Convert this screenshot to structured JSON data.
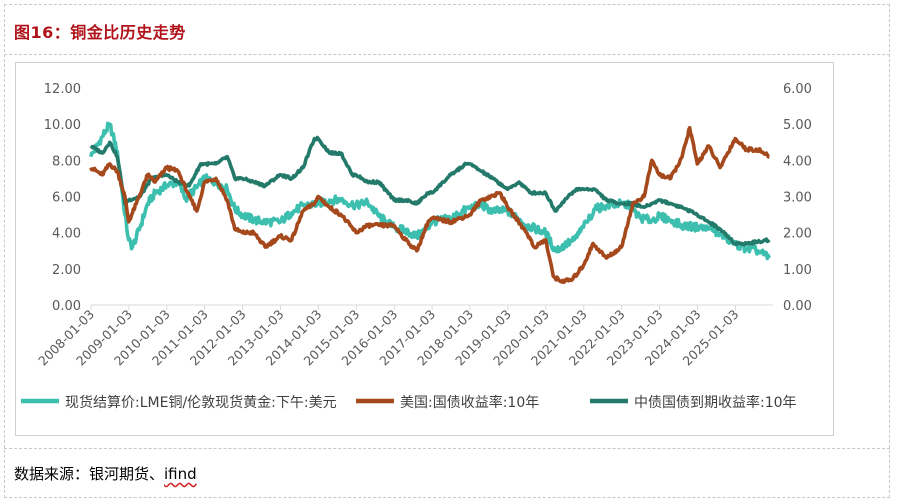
{
  "figure": {
    "title": "图16：铜金比历史走势",
    "source_prefix": "数据来源：银河期货、",
    "source_suffix": "ifind"
  },
  "chart_data": {
    "type": "line",
    "x_tick_labels": [
      "2008-01-03",
      "2009-01-03",
      "2010-01-03",
      "2011-01-03",
      "2012-01-03",
      "2013-01-03",
      "2014-01-03",
      "2015-01-03",
      "2016-01-03",
      "2017-01-03",
      "2018-01-03",
      "2019-01-03",
      "2020-01-03",
      "2021-01-03",
      "2022-01-03",
      "2023-01-03",
      "2024-01-03",
      "2025-01-03"
    ],
    "x_range": [
      "2008-01-03",
      "2025-12-31"
    ],
    "y_left": {
      "ticks": [
        "0.00",
        "2.00",
        "4.00",
        "6.00",
        "8.00",
        "10.00",
        "12.00"
      ],
      "min": 0,
      "max": 12
    },
    "y_right": {
      "ticks": [
        "0.00",
        "1.00",
        "2.00",
        "3.00",
        "4.00",
        "5.00",
        "6.00"
      ],
      "min": 0,
      "max": 6
    },
    "grid": false,
    "legend_position": "bottom",
    "series": [
      {
        "name": "现货结算价:LME铜/伦敦现货黄金:下午:美元",
        "color": "#3dbfb0",
        "axis": "left",
        "points": [
          [
            2008.0,
            8.2
          ],
          [
            2008.3,
            9.3
          ],
          [
            2008.5,
            10.0
          ],
          [
            2008.7,
            8.5
          ],
          [
            2008.9,
            5.0
          ],
          [
            2009.0,
            3.6
          ],
          [
            2009.1,
            3.2
          ],
          [
            2009.3,
            4.3
          ],
          [
            2009.5,
            5.6
          ],
          [
            2009.7,
            6.2
          ],
          [
            2010.0,
            6.6
          ],
          [
            2010.3,
            6.8
          ],
          [
            2010.5,
            5.9
          ],
          [
            2010.8,
            6.5
          ],
          [
            2011.0,
            7.0
          ],
          [
            2011.3,
            6.8
          ],
          [
            2011.6,
            6.4
          ],
          [
            2011.8,
            5.3
          ],
          [
            2012.0,
            5.0
          ],
          [
            2012.3,
            4.7
          ],
          [
            2012.6,
            4.6
          ],
          [
            2013.0,
            4.6
          ],
          [
            2013.3,
            5.1
          ],
          [
            2013.6,
            5.5
          ],
          [
            2014.0,
            5.6
          ],
          [
            2014.3,
            5.8
          ],
          [
            2014.6,
            5.8
          ],
          [
            2015.0,
            5.5
          ],
          [
            2015.3,
            5.7
          ],
          [
            2015.6,
            4.9
          ],
          [
            2016.0,
            4.3
          ],
          [
            2016.3,
            4.1
          ],
          [
            2016.6,
            3.8
          ],
          [
            2016.9,
            4.3
          ],
          [
            2017.0,
            4.6
          ],
          [
            2017.5,
            4.8
          ],
          [
            2018.0,
            5.4
          ],
          [
            2018.3,
            5.5
          ],
          [
            2018.6,
            5.2
          ],
          [
            2019.0,
            5.2
          ],
          [
            2019.5,
            4.4
          ],
          [
            2020.0,
            4.0
          ],
          [
            2020.25,
            3.0
          ],
          [
            2020.5,
            3.3
          ],
          [
            2020.75,
            3.6
          ],
          [
            2021.0,
            4.3
          ],
          [
            2021.3,
            5.3
          ],
          [
            2021.6,
            5.5
          ],
          [
            2022.0,
            5.6
          ],
          [
            2022.2,
            5.5
          ],
          [
            2022.5,
            4.8
          ],
          [
            2022.8,
            4.7
          ],
          [
            2023.0,
            4.9
          ],
          [
            2023.3,
            4.7
          ],
          [
            2023.6,
            4.4
          ],
          [
            2024.0,
            4.3
          ],
          [
            2024.3,
            4.2
          ],
          [
            2024.6,
            3.9
          ],
          [
            2025.0,
            3.4
          ],
          [
            2025.3,
            3.1
          ],
          [
            2025.6,
            3.0
          ],
          [
            2025.9,
            2.6
          ]
        ]
      },
      {
        "name": "美国:国债收益率:10年",
        "color": "#a5481b",
        "axis": "right",
        "points": [
          [
            2008.0,
            3.8
          ],
          [
            2008.3,
            3.6
          ],
          [
            2008.5,
            3.9
          ],
          [
            2008.7,
            3.7
          ],
          [
            2008.9,
            3.0
          ],
          [
            2009.0,
            2.3
          ],
          [
            2009.2,
            2.8
          ],
          [
            2009.5,
            3.6
          ],
          [
            2009.7,
            3.4
          ],
          [
            2010.0,
            3.8
          ],
          [
            2010.3,
            3.7
          ],
          [
            2010.6,
            3.0
          ],
          [
            2010.8,
            2.6
          ],
          [
            2011.0,
            3.4
          ],
          [
            2011.3,
            3.5
          ],
          [
            2011.6,
            2.9
          ],
          [
            2011.8,
            2.1
          ],
          [
            2012.0,
            2.0
          ],
          [
            2012.3,
            2.0
          ],
          [
            2012.6,
            1.6
          ],
          [
            2013.0,
            1.9
          ],
          [
            2013.3,
            1.8
          ],
          [
            2013.6,
            2.6
          ],
          [
            2013.9,
            2.8
          ],
          [
            2014.0,
            3.0
          ],
          [
            2014.3,
            2.7
          ],
          [
            2014.6,
            2.5
          ],
          [
            2015.0,
            2.0
          ],
          [
            2015.3,
            2.2
          ],
          [
            2015.6,
            2.2
          ],
          [
            2016.0,
            2.2
          ],
          [
            2016.3,
            1.8
          ],
          [
            2016.6,
            1.5
          ],
          [
            2016.9,
            2.3
          ],
          [
            2017.0,
            2.4
          ],
          [
            2017.5,
            2.3
          ],
          [
            2018.0,
            2.5
          ],
          [
            2018.3,
            2.9
          ],
          [
            2018.8,
            3.1
          ],
          [
            2019.0,
            2.7
          ],
          [
            2019.5,
            2.0
          ],
          [
            2019.7,
            1.6
          ],
          [
            2020.0,
            1.8
          ],
          [
            2020.2,
            0.8
          ],
          [
            2020.4,
            0.65
          ],
          [
            2020.7,
            0.7
          ],
          [
            2021.0,
            1.1
          ],
          [
            2021.25,
            1.7
          ],
          [
            2021.6,
            1.3
          ],
          [
            2022.0,
            1.6
          ],
          [
            2022.3,
            2.8
          ],
          [
            2022.6,
            3.0
          ],
          [
            2022.8,
            4.0
          ],
          [
            2023.0,
            3.6
          ],
          [
            2023.3,
            3.5
          ],
          [
            2023.6,
            4.1
          ],
          [
            2023.8,
            4.9
          ],
          [
            2024.0,
            3.9
          ],
          [
            2024.3,
            4.4
          ],
          [
            2024.6,
            3.8
          ],
          [
            2025.0,
            4.6
          ],
          [
            2025.3,
            4.3
          ],
          [
            2025.6,
            4.3
          ],
          [
            2025.9,
            4.1
          ]
        ]
      },
      {
        "name": "中债国债到期收益率:10年",
        "color": "#247a6a",
        "axis": "right",
        "points": [
          [
            2008.0,
            4.4
          ],
          [
            2008.3,
            4.2
          ],
          [
            2008.5,
            4.5
          ],
          [
            2008.7,
            4.1
          ],
          [
            2008.9,
            2.8
          ],
          [
            2009.0,
            2.9
          ],
          [
            2009.3,
            3.0
          ],
          [
            2009.6,
            3.5
          ],
          [
            2010.0,
            3.6
          ],
          [
            2010.3,
            3.4
          ],
          [
            2010.6,
            3.3
          ],
          [
            2010.9,
            3.9
          ],
          [
            2011.0,
            3.9
          ],
          [
            2011.3,
            3.9
          ],
          [
            2011.6,
            4.1
          ],
          [
            2011.8,
            3.5
          ],
          [
            2012.0,
            3.5
          ],
          [
            2012.3,
            3.4
          ],
          [
            2012.6,
            3.3
          ],
          [
            2013.0,
            3.6
          ],
          [
            2013.3,
            3.5
          ],
          [
            2013.6,
            3.8
          ],
          [
            2013.9,
            4.6
          ],
          [
            2014.0,
            4.6
          ],
          [
            2014.3,
            4.2
          ],
          [
            2014.6,
            4.2
          ],
          [
            2014.9,
            3.6
          ],
          [
            2015.0,
            3.6
          ],
          [
            2015.3,
            3.4
          ],
          [
            2015.6,
            3.4
          ],
          [
            2016.0,
            2.9
          ],
          [
            2016.3,
            2.9
          ],
          [
            2016.6,
            2.8
          ],
          [
            2016.9,
            3.1
          ],
          [
            2017.0,
            3.1
          ],
          [
            2017.5,
            3.6
          ],
          [
            2017.9,
            3.9
          ],
          [
            2018.0,
            3.9
          ],
          [
            2018.3,
            3.7
          ],
          [
            2018.6,
            3.5
          ],
          [
            2019.0,
            3.2
          ],
          [
            2019.3,
            3.4
          ],
          [
            2019.6,
            3.1
          ],
          [
            2020.0,
            3.1
          ],
          [
            2020.25,
            2.6
          ],
          [
            2020.5,
            2.9
          ],
          [
            2020.8,
            3.2
          ],
          [
            2021.0,
            3.2
          ],
          [
            2021.3,
            3.2
          ],
          [
            2021.6,
            2.9
          ],
          [
            2022.0,
            2.8
          ],
          [
            2022.3,
            2.8
          ],
          [
            2022.6,
            2.7
          ],
          [
            2022.8,
            2.8
          ],
          [
            2023.0,
            2.9
          ],
          [
            2023.3,
            2.8
          ],
          [
            2023.6,
            2.7
          ],
          [
            2024.0,
            2.5
          ],
          [
            2024.3,
            2.3
          ],
          [
            2024.6,
            2.1
          ],
          [
            2025.0,
            1.7
          ],
          [
            2025.3,
            1.7
          ],
          [
            2025.6,
            1.75
          ],
          [
            2025.9,
            1.8
          ]
        ]
      }
    ]
  }
}
